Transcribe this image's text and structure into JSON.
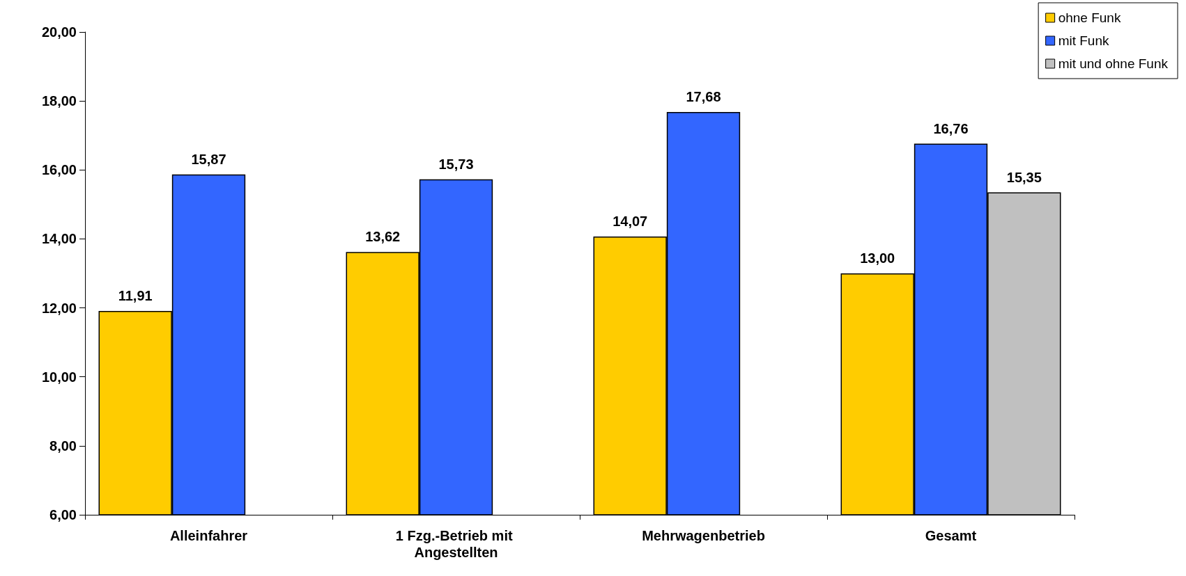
{
  "chart_data": {
    "type": "bar",
    "categories": [
      "Alleinfahrer",
      "1 Fzg.-Betrieb mit Angestellten",
      "Mehrwagenbetrieb",
      "Gesamt"
    ],
    "series": [
      {
        "name": "ohne Funk",
        "color": "#ffcc00",
        "values": [
          11.91,
          13.62,
          14.07,
          13.0
        ],
        "value_labels": [
          "11,91",
          "13,62",
          "14,07",
          "13,00"
        ]
      },
      {
        "name": "mit Funk",
        "color": "#3366ff",
        "values": [
          15.87,
          15.73,
          17.68,
          16.76
        ],
        "value_labels": [
          "15,87",
          "15,73",
          "17,68",
          "16,76"
        ]
      },
      {
        "name": "mit und ohne Funk",
        "color": "#c0c0c0",
        "values": [
          null,
          null,
          null,
          15.35
        ],
        "value_labels": [
          null,
          null,
          null,
          "15,35"
        ]
      }
    ],
    "ylim": [
      6,
      20
    ],
    "yticks": [
      {
        "value": 6,
        "label": "6,00"
      },
      {
        "value": 8,
        "label": "8,00"
      },
      {
        "value": 10,
        "label": "10,00"
      },
      {
        "value": 12,
        "label": "12,00"
      },
      {
        "value": 14,
        "label": "14,00"
      },
      {
        "value": 16,
        "label": "16,00"
      },
      {
        "value": 18,
        "label": "18,00"
      },
      {
        "value": 20,
        "label": "20,00"
      }
    ],
    "grid": false,
    "legend": "top right"
  }
}
